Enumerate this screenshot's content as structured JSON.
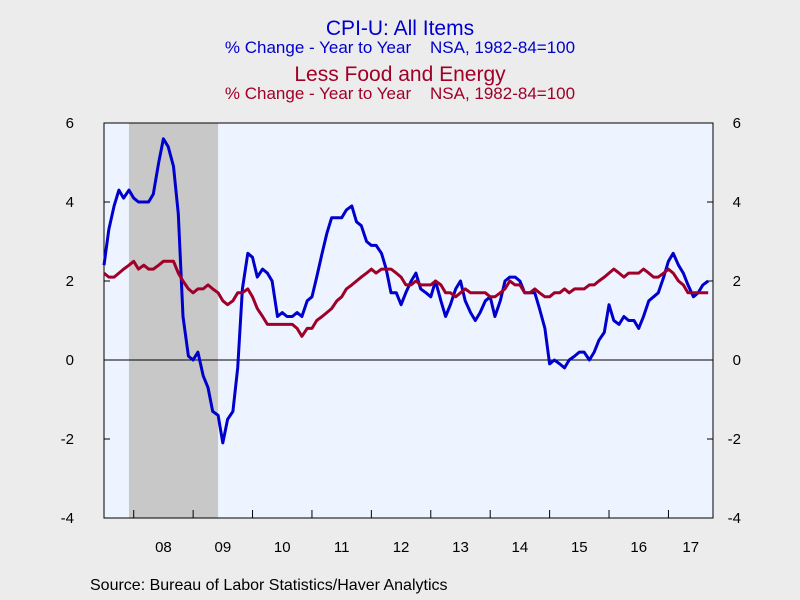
{
  "titles": {
    "s1_title": "CPI-U: All Items",
    "s1_subtitle": "% Change - Year to Year    NSA, 1982-84=100",
    "s2_title": "Less Food and Energy",
    "s2_subtitle": "% Change - Year to Year    NSA, 1982-84=100"
  },
  "source": "Source:  Bureau of Labor Statistics/Haver Analytics",
  "colors": {
    "s1": "#0000cc",
    "s2": "#a00028",
    "plot_bg": "#eef4ff",
    "recession": "#c8c8c8",
    "page_bg": "#ececec"
  },
  "chart_data": {
    "type": "line",
    "title": "CPI-U: All Items / Less Food and Energy",
    "x_unit": "year",
    "xlim": [
      2007.5,
      2017.75
    ],
    "ylim": [
      -4,
      6
    ],
    "yticks": [
      -4,
      -2,
      0,
      2,
      4,
      6
    ],
    "xtick_labels": [
      {
        "label": "08",
        "year": 2008
      },
      {
        "label": "09",
        "year": 2009
      },
      {
        "label": "10",
        "year": 2010
      },
      {
        "label": "11",
        "year": 2011
      },
      {
        "label": "12",
        "year": 2012
      },
      {
        "label": "13",
        "year": 2013
      },
      {
        "label": "14",
        "year": 2014
      },
      {
        "label": "15",
        "year": 2015
      },
      {
        "label": "16",
        "year": 2016
      },
      {
        "label": "17",
        "year": 2017
      }
    ],
    "zero_line": true,
    "recession_shading": [
      2007.92,
      2009.42
    ],
    "series": [
      {
        "name": "CPI-U: All Items",
        "color": "#0000cc",
        "points": [
          [
            2007.5,
            2.4
          ],
          [
            2007.58,
            3.3
          ],
          [
            2007.67,
            3.9
          ],
          [
            2007.75,
            4.3
          ],
          [
            2007.83,
            4.1
          ],
          [
            2007.92,
            4.3
          ],
          [
            2008.0,
            4.1
          ],
          [
            2008.08,
            4.0
          ],
          [
            2008.17,
            4.0
          ],
          [
            2008.25,
            4.0
          ],
          [
            2008.33,
            4.2
          ],
          [
            2008.42,
            5.0
          ],
          [
            2008.5,
            5.6
          ],
          [
            2008.58,
            5.4
          ],
          [
            2008.67,
            4.9
          ],
          [
            2008.75,
            3.7
          ],
          [
            2008.83,
            1.1
          ],
          [
            2008.92,
            0.1
          ],
          [
            2009.0,
            0.0
          ],
          [
            2009.08,
            0.2
          ],
          [
            2009.17,
            -0.4
          ],
          [
            2009.25,
            -0.7
          ],
          [
            2009.33,
            -1.3
          ],
          [
            2009.42,
            -1.4
          ],
          [
            2009.5,
            -2.1
          ],
          [
            2009.58,
            -1.5
          ],
          [
            2009.67,
            -1.3
          ],
          [
            2009.75,
            -0.2
          ],
          [
            2009.83,
            1.8
          ],
          [
            2009.92,
            2.7
          ],
          [
            2010.0,
            2.6
          ],
          [
            2010.08,
            2.1
          ],
          [
            2010.17,
            2.3
          ],
          [
            2010.25,
            2.2
          ],
          [
            2010.33,
            2.0
          ],
          [
            2010.42,
            1.1
          ],
          [
            2010.5,
            1.2
          ],
          [
            2010.58,
            1.1
          ],
          [
            2010.67,
            1.1
          ],
          [
            2010.75,
            1.2
          ],
          [
            2010.83,
            1.1
          ],
          [
            2010.92,
            1.5
          ],
          [
            2011.0,
            1.6
          ],
          [
            2011.08,
            2.1
          ],
          [
            2011.17,
            2.7
          ],
          [
            2011.25,
            3.2
          ],
          [
            2011.33,
            3.6
          ],
          [
            2011.42,
            3.6
          ],
          [
            2011.5,
            3.6
          ],
          [
            2011.58,
            3.8
          ],
          [
            2011.67,
            3.9
          ],
          [
            2011.75,
            3.5
          ],
          [
            2011.83,
            3.4
          ],
          [
            2011.92,
            3.0
          ],
          [
            2012.0,
            2.9
          ],
          [
            2012.08,
            2.9
          ],
          [
            2012.17,
            2.7
          ],
          [
            2012.25,
            2.3
          ],
          [
            2012.33,
            1.7
          ],
          [
            2012.42,
            1.7
          ],
          [
            2012.5,
            1.4
          ],
          [
            2012.58,
            1.7
          ],
          [
            2012.67,
            2.0
          ],
          [
            2012.75,
            2.2
          ],
          [
            2012.83,
            1.8
          ],
          [
            2012.92,
            1.7
          ],
          [
            2013.0,
            1.6
          ],
          [
            2013.08,
            2.0
          ],
          [
            2013.17,
            1.5
          ],
          [
            2013.25,
            1.1
          ],
          [
            2013.33,
            1.4
          ],
          [
            2013.42,
            1.8
          ],
          [
            2013.5,
            2.0
          ],
          [
            2013.58,
            1.5
          ],
          [
            2013.67,
            1.2
          ],
          [
            2013.75,
            1.0
          ],
          [
            2013.83,
            1.2
          ],
          [
            2013.92,
            1.5
          ],
          [
            2014.0,
            1.6
          ],
          [
            2014.08,
            1.1
          ],
          [
            2014.17,
            1.5
          ],
          [
            2014.25,
            2.0
          ],
          [
            2014.33,
            2.1
          ],
          [
            2014.42,
            2.1
          ],
          [
            2014.5,
            2.0
          ],
          [
            2014.58,
            1.7
          ],
          [
            2014.67,
            1.7
          ],
          [
            2014.75,
            1.7
          ],
          [
            2014.83,
            1.3
          ],
          [
            2014.92,
            0.8
          ],
          [
            2015.0,
            -0.1
          ],
          [
            2015.08,
            0.0
          ],
          [
            2015.17,
            -0.1
          ],
          [
            2015.25,
            -0.2
          ],
          [
            2015.33,
            0.0
          ],
          [
            2015.42,
            0.1
          ],
          [
            2015.5,
            0.2
          ],
          [
            2015.58,
            0.2
          ],
          [
            2015.67,
            0.0
          ],
          [
            2015.75,
            0.2
          ],
          [
            2015.83,
            0.5
          ],
          [
            2015.92,
            0.7
          ],
          [
            2016.0,
            1.4
          ],
          [
            2016.08,
            1.0
          ],
          [
            2016.17,
            0.9
          ],
          [
            2016.25,
            1.1
          ],
          [
            2016.33,
            1.0
          ],
          [
            2016.42,
            1.0
          ],
          [
            2016.5,
            0.8
          ],
          [
            2016.58,
            1.1
          ],
          [
            2016.67,
            1.5
          ],
          [
            2016.75,
            1.6
          ],
          [
            2016.83,
            1.7
          ],
          [
            2016.92,
            2.1
          ],
          [
            2017.0,
            2.5
          ],
          [
            2017.08,
            2.7
          ],
          [
            2017.17,
            2.4
          ],
          [
            2017.25,
            2.2
          ],
          [
            2017.33,
            1.9
          ],
          [
            2017.42,
            1.6
          ],
          [
            2017.5,
            1.7
          ],
          [
            2017.58,
            1.9
          ],
          [
            2017.67,
            2.0
          ]
        ]
      },
      {
        "name": "Less Food and Energy",
        "color": "#a00028",
        "points": [
          [
            2007.5,
            2.2
          ],
          [
            2007.58,
            2.1
          ],
          [
            2007.67,
            2.1
          ],
          [
            2007.75,
            2.2
          ],
          [
            2007.83,
            2.3
          ],
          [
            2007.92,
            2.4
          ],
          [
            2008.0,
            2.5
          ],
          [
            2008.08,
            2.3
          ],
          [
            2008.17,
            2.4
          ],
          [
            2008.25,
            2.3
          ],
          [
            2008.33,
            2.3
          ],
          [
            2008.42,
            2.4
          ],
          [
            2008.5,
            2.5
          ],
          [
            2008.58,
            2.5
          ],
          [
            2008.67,
            2.5
          ],
          [
            2008.75,
            2.2
          ],
          [
            2008.83,
            2.0
          ],
          [
            2008.92,
            1.8
          ],
          [
            2009.0,
            1.7
          ],
          [
            2009.08,
            1.8
          ],
          [
            2009.17,
            1.8
          ],
          [
            2009.25,
            1.9
          ],
          [
            2009.33,
            1.8
          ],
          [
            2009.42,
            1.7
          ],
          [
            2009.5,
            1.5
          ],
          [
            2009.58,
            1.4
          ],
          [
            2009.67,
            1.5
          ],
          [
            2009.75,
            1.7
          ],
          [
            2009.83,
            1.7
          ],
          [
            2009.92,
            1.8
          ],
          [
            2010.0,
            1.6
          ],
          [
            2010.08,
            1.3
          ],
          [
            2010.17,
            1.1
          ],
          [
            2010.25,
            0.9
          ],
          [
            2010.33,
            0.9
          ],
          [
            2010.42,
            0.9
          ],
          [
            2010.5,
            0.9
          ],
          [
            2010.58,
            0.9
          ],
          [
            2010.67,
            0.9
          ],
          [
            2010.75,
            0.8
          ],
          [
            2010.83,
            0.6
          ],
          [
            2010.92,
            0.8
          ],
          [
            2011.0,
            0.8
          ],
          [
            2011.08,
            1.0
          ],
          [
            2011.17,
            1.1
          ],
          [
            2011.25,
            1.2
          ],
          [
            2011.33,
            1.3
          ],
          [
            2011.42,
            1.5
          ],
          [
            2011.5,
            1.6
          ],
          [
            2011.58,
            1.8
          ],
          [
            2011.67,
            1.9
          ],
          [
            2011.75,
            2.0
          ],
          [
            2011.83,
            2.1
          ],
          [
            2011.92,
            2.2
          ],
          [
            2012.0,
            2.3
          ],
          [
            2012.08,
            2.2
          ],
          [
            2012.17,
            2.3
          ],
          [
            2012.25,
            2.3
          ],
          [
            2012.33,
            2.3
          ],
          [
            2012.42,
            2.2
          ],
          [
            2012.5,
            2.1
          ],
          [
            2012.58,
            1.9
          ],
          [
            2012.67,
            1.9
          ],
          [
            2012.75,
            2.0
          ],
          [
            2012.83,
            1.9
          ],
          [
            2012.92,
            1.9
          ],
          [
            2013.0,
            1.9
          ],
          [
            2013.08,
            2.0
          ],
          [
            2013.17,
            1.9
          ],
          [
            2013.25,
            1.7
          ],
          [
            2013.33,
            1.7
          ],
          [
            2013.42,
            1.6
          ],
          [
            2013.5,
            1.7
          ],
          [
            2013.58,
            1.8
          ],
          [
            2013.67,
            1.7
          ],
          [
            2013.75,
            1.7
          ],
          [
            2013.83,
            1.7
          ],
          [
            2013.92,
            1.7
          ],
          [
            2014.0,
            1.6
          ],
          [
            2014.08,
            1.6
          ],
          [
            2014.17,
            1.7
          ],
          [
            2014.25,
            1.8
          ],
          [
            2014.33,
            2.0
          ],
          [
            2014.42,
            1.9
          ],
          [
            2014.5,
            1.9
          ],
          [
            2014.58,
            1.7
          ],
          [
            2014.67,
            1.7
          ],
          [
            2014.75,
            1.8
          ],
          [
            2014.83,
            1.7
          ],
          [
            2014.92,
            1.6
          ],
          [
            2015.0,
            1.6
          ],
          [
            2015.08,
            1.7
          ],
          [
            2015.17,
            1.7
          ],
          [
            2015.25,
            1.8
          ],
          [
            2015.33,
            1.7
          ],
          [
            2015.42,
            1.8
          ],
          [
            2015.5,
            1.8
          ],
          [
            2015.58,
            1.8
          ],
          [
            2015.67,
            1.9
          ],
          [
            2015.75,
            1.9
          ],
          [
            2015.83,
            2.0
          ],
          [
            2015.92,
            2.1
          ],
          [
            2016.0,
            2.2
          ],
          [
            2016.08,
            2.3
          ],
          [
            2016.17,
            2.2
          ],
          [
            2016.25,
            2.1
          ],
          [
            2016.33,
            2.2
          ],
          [
            2016.42,
            2.2
          ],
          [
            2016.5,
            2.2
          ],
          [
            2016.58,
            2.3
          ],
          [
            2016.67,
            2.2
          ],
          [
            2016.75,
            2.1
          ],
          [
            2016.83,
            2.1
          ],
          [
            2016.92,
            2.2
          ],
          [
            2017.0,
            2.3
          ],
          [
            2017.08,
            2.2
          ],
          [
            2017.17,
            2.0
          ],
          [
            2017.25,
            1.9
          ],
          [
            2017.33,
            1.7
          ],
          [
            2017.42,
            1.7
          ],
          [
            2017.5,
            1.7
          ],
          [
            2017.58,
            1.7
          ],
          [
            2017.67,
            1.7
          ]
        ]
      }
    ]
  }
}
